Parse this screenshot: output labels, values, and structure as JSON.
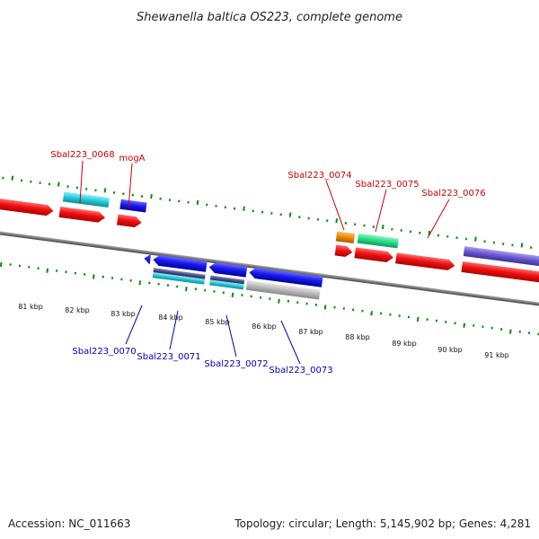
{
  "title": "Shewanella baltica OS223, complete genome",
  "footer": {
    "accession": "Accession: NC_011663",
    "summary": "Topology: circular; Length: 5,145,902 bp; Genes: 4,281"
  },
  "colors": {
    "forward_gene": "#ee1111",
    "reverse_gene": "#1a1aee",
    "cyan": "#22c8d8",
    "green": "#22dd88",
    "orange": "#ee8800",
    "purple": "#6655cc",
    "navy": "#4a4a88",
    "gray": "#b8b8b8",
    "tick": "#118811",
    "backbone": "#777777",
    "label_forward": "#cc0000",
    "label_reverse": "#0000bb"
  },
  "ticks": {
    "labels": [
      "81 kbp",
      "82 kbp",
      "83 kbp",
      "84 kbp",
      "85 kbp",
      "86 kbp",
      "87 kbp",
      "88 kbp",
      "89 kbp",
      "90 kbp",
      "91 kbp"
    ]
  },
  "gene_labels": {
    "top": [
      "Sbal223_0068",
      "mogA",
      "Sbal223_0074",
      "Sbal223_0075",
      "Sbal223_0076"
    ],
    "bottom": [
      "Sbal223_0070",
      "Sbal223_0071",
      "Sbal223_0072",
      "Sbal223_0073"
    ]
  }
}
